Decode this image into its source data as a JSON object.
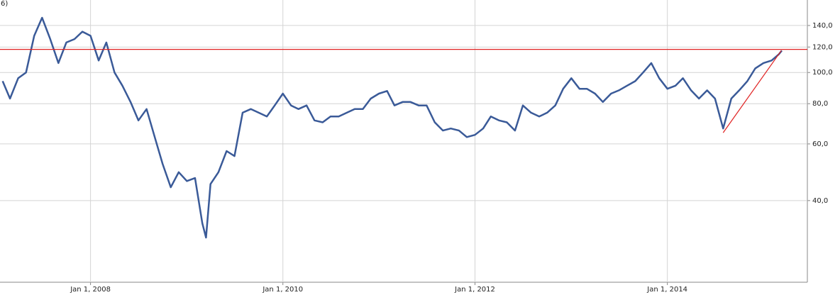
{
  "chart_data": {
    "type": "line",
    "corner_label": "6)",
    "log_y": true,
    "grid": true,
    "xlim": [
      "2007-01-22",
      "2015-06-17"
    ],
    "xticks": [
      {
        "value": "2008-01-01",
        "label": "Jan 1, 2008"
      },
      {
        "value": "2010-01-01",
        "label": "Jan 1, 2010"
      },
      {
        "value": "2012-01-01",
        "label": "Jan 1, 2012"
      },
      {
        "value": "2014-01-01",
        "label": "Jan 1, 2014"
      }
    ],
    "ylim": [
      22.3,
      168
    ],
    "yticks": [
      {
        "value": 140,
        "label": "140,0"
      },
      {
        "value": 120,
        "label": "120,0"
      },
      {
        "value": 100,
        "label": "100,0"
      },
      {
        "value": 80,
        "label": "80,0"
      },
      {
        "value": 60,
        "label": "60,0"
      },
      {
        "value": 40,
        "label": "40,0"
      }
    ],
    "x": [
      "2007-02-01",
      "2007-03-01",
      "2007-04-01",
      "2007-05-01",
      "2007-06-01",
      "2007-07-01",
      "2007-08-01",
      "2007-09-01",
      "2007-10-01",
      "2007-11-01",
      "2007-12-01",
      "2008-01-01",
      "2008-02-01",
      "2008-03-01",
      "2008-04-01",
      "2008-05-01",
      "2008-06-01",
      "2008-07-01",
      "2008-08-01",
      "2008-09-01",
      "2008-10-01",
      "2008-11-01",
      "2008-12-01",
      "2009-01-01",
      "2009-02-01",
      "2009-03-01",
      "2009-03-15",
      "2009-04-01",
      "2009-05-01",
      "2009-06-01",
      "2009-07-01",
      "2009-08-01",
      "2009-09-01",
      "2009-10-01",
      "2009-11-01",
      "2009-12-01",
      "2010-01-01",
      "2010-02-01",
      "2010-03-01",
      "2010-04-01",
      "2010-05-01",
      "2010-06-01",
      "2010-07-01",
      "2010-08-01",
      "2010-09-01",
      "2010-10-01",
      "2010-11-01",
      "2010-12-01",
      "2011-01-01",
      "2011-02-01",
      "2011-03-01",
      "2011-04-01",
      "2011-05-01",
      "2011-06-01",
      "2011-07-01",
      "2011-08-01",
      "2011-09-01",
      "2011-10-01",
      "2011-11-01",
      "2011-12-01",
      "2012-01-01",
      "2012-02-01",
      "2012-03-01",
      "2012-04-01",
      "2012-05-01",
      "2012-06-01",
      "2012-07-01",
      "2012-08-01",
      "2012-09-01",
      "2012-10-01",
      "2012-11-01",
      "2012-12-01",
      "2013-01-01",
      "2013-02-01",
      "2013-03-01",
      "2013-04-01",
      "2013-05-01",
      "2013-06-01",
      "2013-07-01",
      "2013-08-01",
      "2013-09-01",
      "2013-10-01",
      "2013-11-01",
      "2013-12-01",
      "2014-01-01",
      "2014-02-01",
      "2014-03-01",
      "2014-04-01",
      "2014-05-01",
      "2014-06-01",
      "2014-07-01",
      "2014-08-01",
      "2014-09-01",
      "2014-10-01",
      "2014-11-01",
      "2014-12-01",
      "2015-01-01",
      "2015-02-01",
      "2015-03-01",
      "2015-03-12"
    ],
    "series": [
      {
        "color": "#3a5a98",
        "values": [
          94,
          83,
          96,
          100,
          130,
          148,
          127,
          107,
          124,
          127,
          134,
          130,
          109,
          124,
          100,
          91,
          81,
          71,
          77,
          63,
          52,
          44,
          49,
          46,
          47,
          34,
          30.7,
          45,
          49,
          57,
          55,
          75,
          77,
          75,
          73,
          79,
          86,
          79,
          77,
          79,
          71,
          70,
          73,
          73,
          75,
          77,
          77,
          83,
          86,
          87.6,
          79,
          81,
          81,
          79,
          79,
          70,
          66,
          67,
          66,
          63,
          64,
          67,
          73,
          71,
          70,
          66,
          79,
          75,
          73,
          75,
          79,
          89,
          96,
          89,
          89,
          86,
          81,
          86,
          88,
          91,
          94,
          100,
          107,
          96,
          89,
          91,
          96,
          88,
          83,
          88,
          83,
          67,
          83,
          88,
          94,
          103,
          107,
          109,
          114,
          117
        ]
      }
    ],
    "hline": {
      "value": 118,
      "color": "#e02020"
    },
    "trendline": {
      "x": [
        "2014-08-01",
        "2015-03-10"
      ],
      "values": [
        65,
        117
      ],
      "color": "#e02020"
    }
  }
}
